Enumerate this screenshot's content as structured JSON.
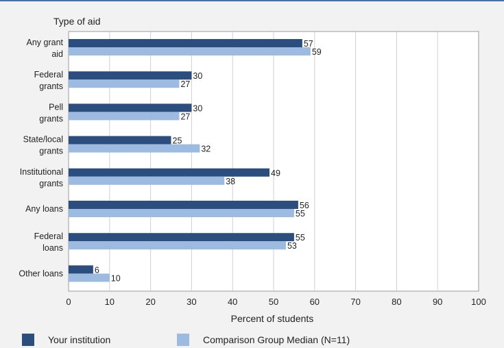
{
  "chart_data": {
    "type": "bar",
    "orientation": "horizontal",
    "y_axis_title": "Type of aid",
    "xlabel": "Percent of students",
    "xlim": [
      0,
      100
    ],
    "xticks": [
      0,
      10,
      20,
      30,
      40,
      50,
      60,
      70,
      80,
      90,
      100
    ],
    "grid": "vertical",
    "legend_placement": "bottom",
    "categories": [
      [
        "Any grant",
        "aid"
      ],
      [
        "Federal",
        "grants"
      ],
      [
        "Pell",
        "grants"
      ],
      [
        "State/local",
        "grants"
      ],
      [
        "Institutional",
        "grants"
      ],
      [
        "Any loans"
      ],
      [
        "Federal",
        "loans"
      ],
      [
        "Other loans"
      ]
    ],
    "series": [
      {
        "name": "Your institution",
        "color": "#2b4e7e",
        "values": [
          57,
          30,
          30,
          25,
          49,
          56,
          55,
          6
        ]
      },
      {
        "name": "Comparison Group Median (N=11)",
        "color": "#9dbbe0",
        "values": [
          59,
          27,
          27,
          32,
          38,
          55,
          53,
          10
        ]
      }
    ]
  }
}
